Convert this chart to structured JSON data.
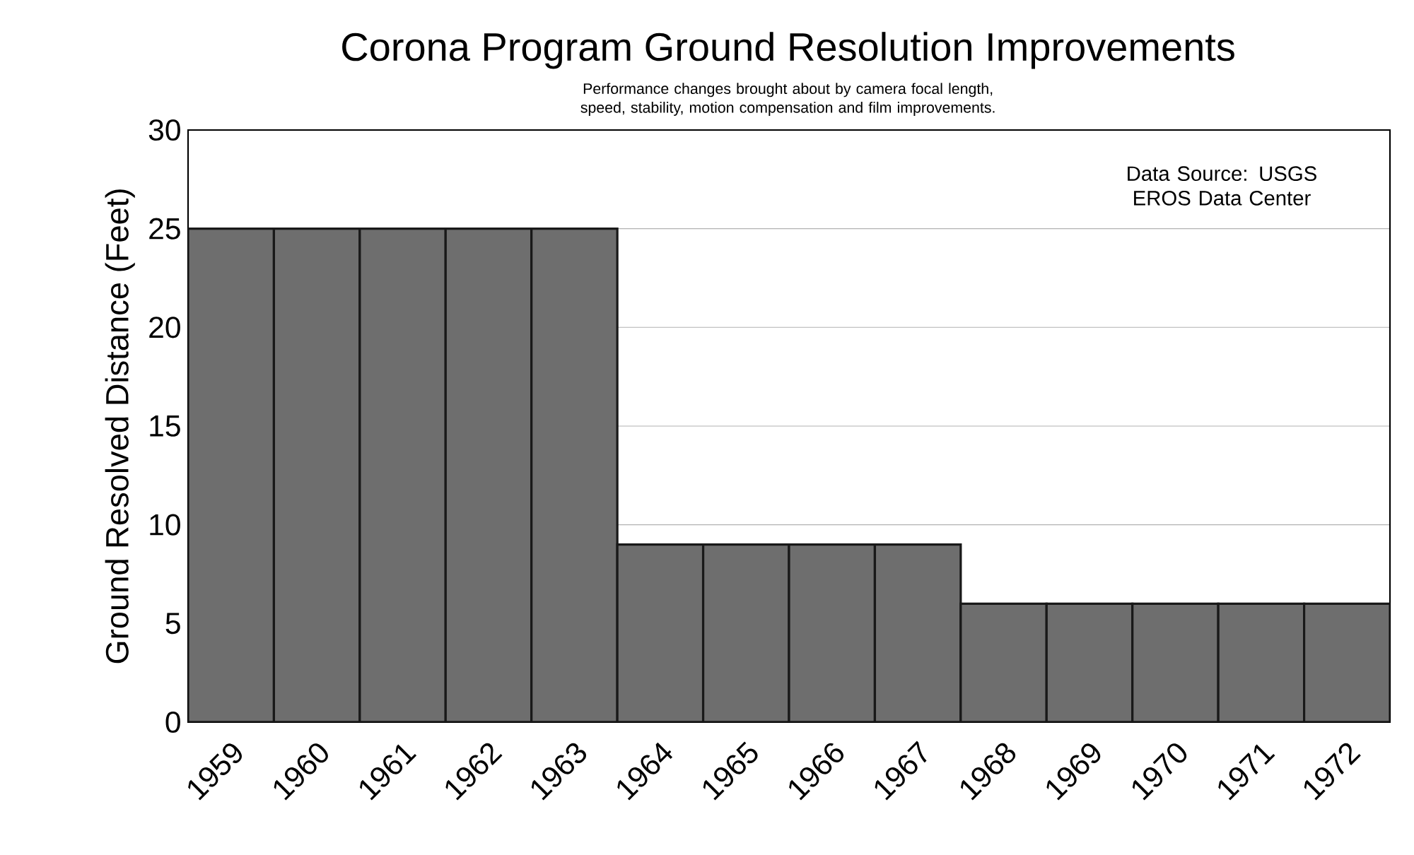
{
  "chart_data": {
    "type": "bar",
    "title": "Corona Program Ground Resolution Improvements",
    "subtitle": "Performance changes brought about by camera focal length, speed, stability, motion compensation and film improvements.",
    "ylabel": "Ground Resolved Distance (Feet)",
    "annotations": [
      "Data Source: USGS EROS Data Center"
    ],
    "categories": [
      "1959",
      "1960",
      "1961",
      "1962",
      "1963",
      "1964",
      "1965",
      "1966",
      "1967",
      "1968",
      "1969",
      "1970",
      "1971",
      "1972"
    ],
    "values": [
      25,
      25,
      25,
      25,
      25,
      9,
      9,
      9,
      9,
      6,
      6,
      6,
      6,
      6
    ],
    "color": "#6e6e6e",
    "ylim": [
      0,
      30
    ],
    "yticks": [
      0,
      5,
      10,
      15,
      20,
      25,
      30
    ],
    "grid": "y"
  }
}
